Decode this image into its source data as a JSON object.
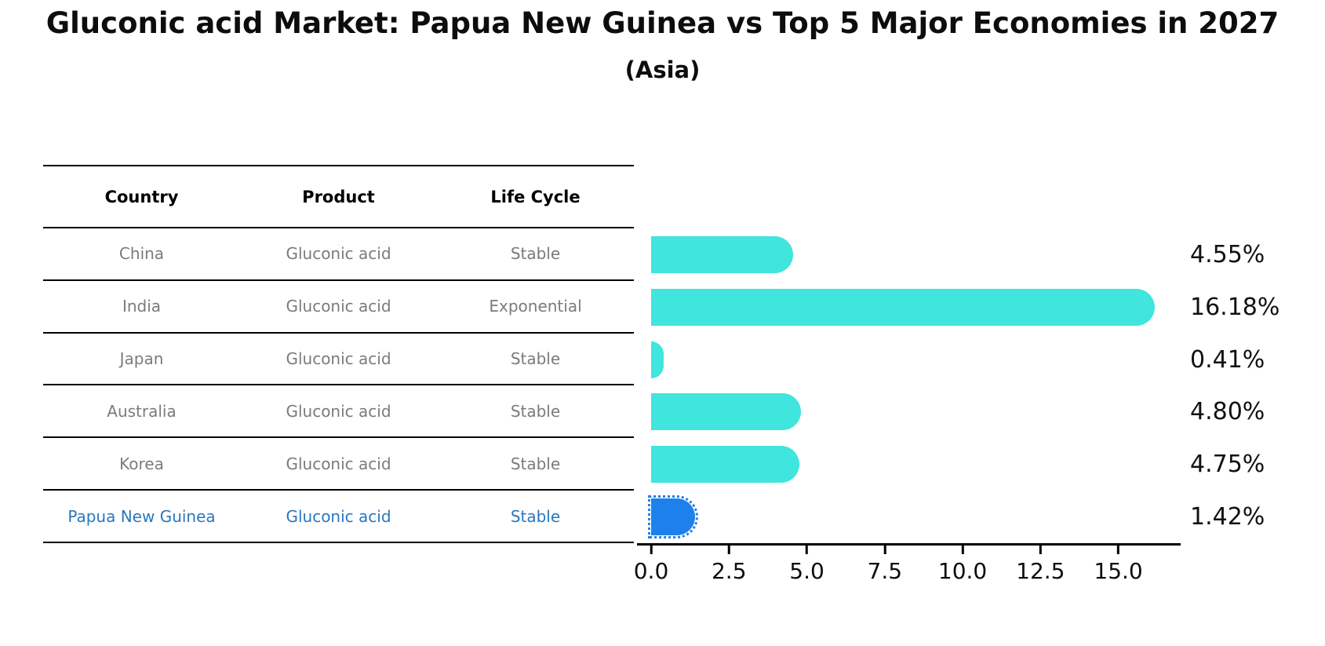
{
  "title": "Gluconic acid Market: Papua New Guinea vs Top 5 Major Economies in 2027",
  "subtitle": "(Asia)",
  "table": {
    "headers": [
      "Country",
      "Product",
      "Life Cycle"
    ],
    "rows": [
      {
        "country": "China",
        "product": "Gluconic acid",
        "life_cycle": "Stable",
        "highlight": false
      },
      {
        "country": "India",
        "product": "Gluconic acid",
        "life_cycle": "Exponential",
        "highlight": false
      },
      {
        "country": "Japan",
        "product": "Gluconic acid",
        "life_cycle": "Stable",
        "highlight": false
      },
      {
        "country": "Australia",
        "product": "Gluconic acid",
        "life_cycle": "Stable",
        "highlight": false
      },
      {
        "country": "Korea",
        "product": "Gluconic acid",
        "life_cycle": "Stable",
        "highlight": false
      },
      {
        "country": "Papua New Guinea",
        "product": "Gluconic acid",
        "life_cycle": "Stable",
        "highlight": true
      }
    ]
  },
  "chart_data": {
    "type": "bar",
    "orientation": "horizontal",
    "title": "Gluconic acid Market: Papua New Guinea vs Top 5 Major Economies in 2027 (Asia)",
    "xlabel": "",
    "ylabel": "",
    "categories": [
      "China",
      "India",
      "Japan",
      "Australia",
      "Korea",
      "Papua New Guinea"
    ],
    "values": [
      4.55,
      16.18,
      0.41,
      4.8,
      4.75,
      1.42
    ],
    "labels": [
      "4.55%",
      "16.18%",
      "0.41%",
      "4.80%",
      "4.75%",
      "1.42%"
    ],
    "x_ticks": [
      "0.0",
      "2.5",
      "5.0",
      "7.5",
      "10.0",
      "12.5",
      "15.0"
    ],
    "xlim": [
      0,
      17
    ],
    "grid": false,
    "legend": false,
    "highlight_index": 5
  },
  "colors": {
    "bar_color": "#40E5DD",
    "highlight_bar": "#1E80EB",
    "highlight_text": "#2878BE",
    "cell_text": "#7B7B7B",
    "header_text": "#000000",
    "axis_color": "#000000"
  }
}
